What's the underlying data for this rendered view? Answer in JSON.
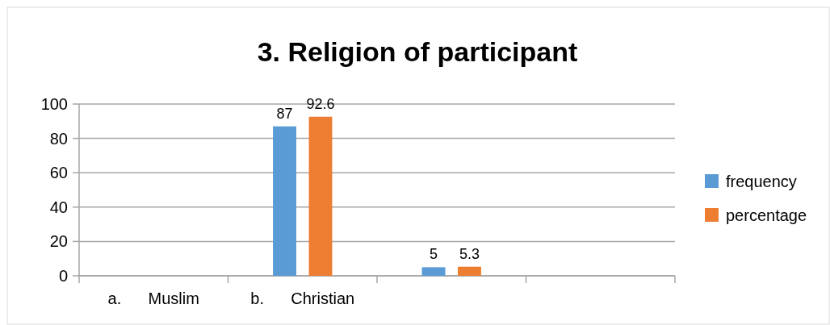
{
  "chart_data": {
    "type": "bar",
    "title": "3. Religion of participant",
    "categories": [
      "a.      Muslim",
      "b.      Christian",
      null,
      null
    ],
    "series": [
      {
        "name": "frequency",
        "color": "#5b9bd5",
        "values": [
          null,
          87,
          5,
          null
        ]
      },
      {
        "name": "percentage",
        "color": "#ed7d31",
        "values": [
          null,
          92.6,
          5.3,
          null
        ]
      }
    ],
    "ylim": [
      0,
      100
    ],
    "yticks": [
      0,
      20,
      40,
      60,
      80,
      100
    ],
    "grid": "y",
    "legend": "right",
    "data_labels": true
  }
}
